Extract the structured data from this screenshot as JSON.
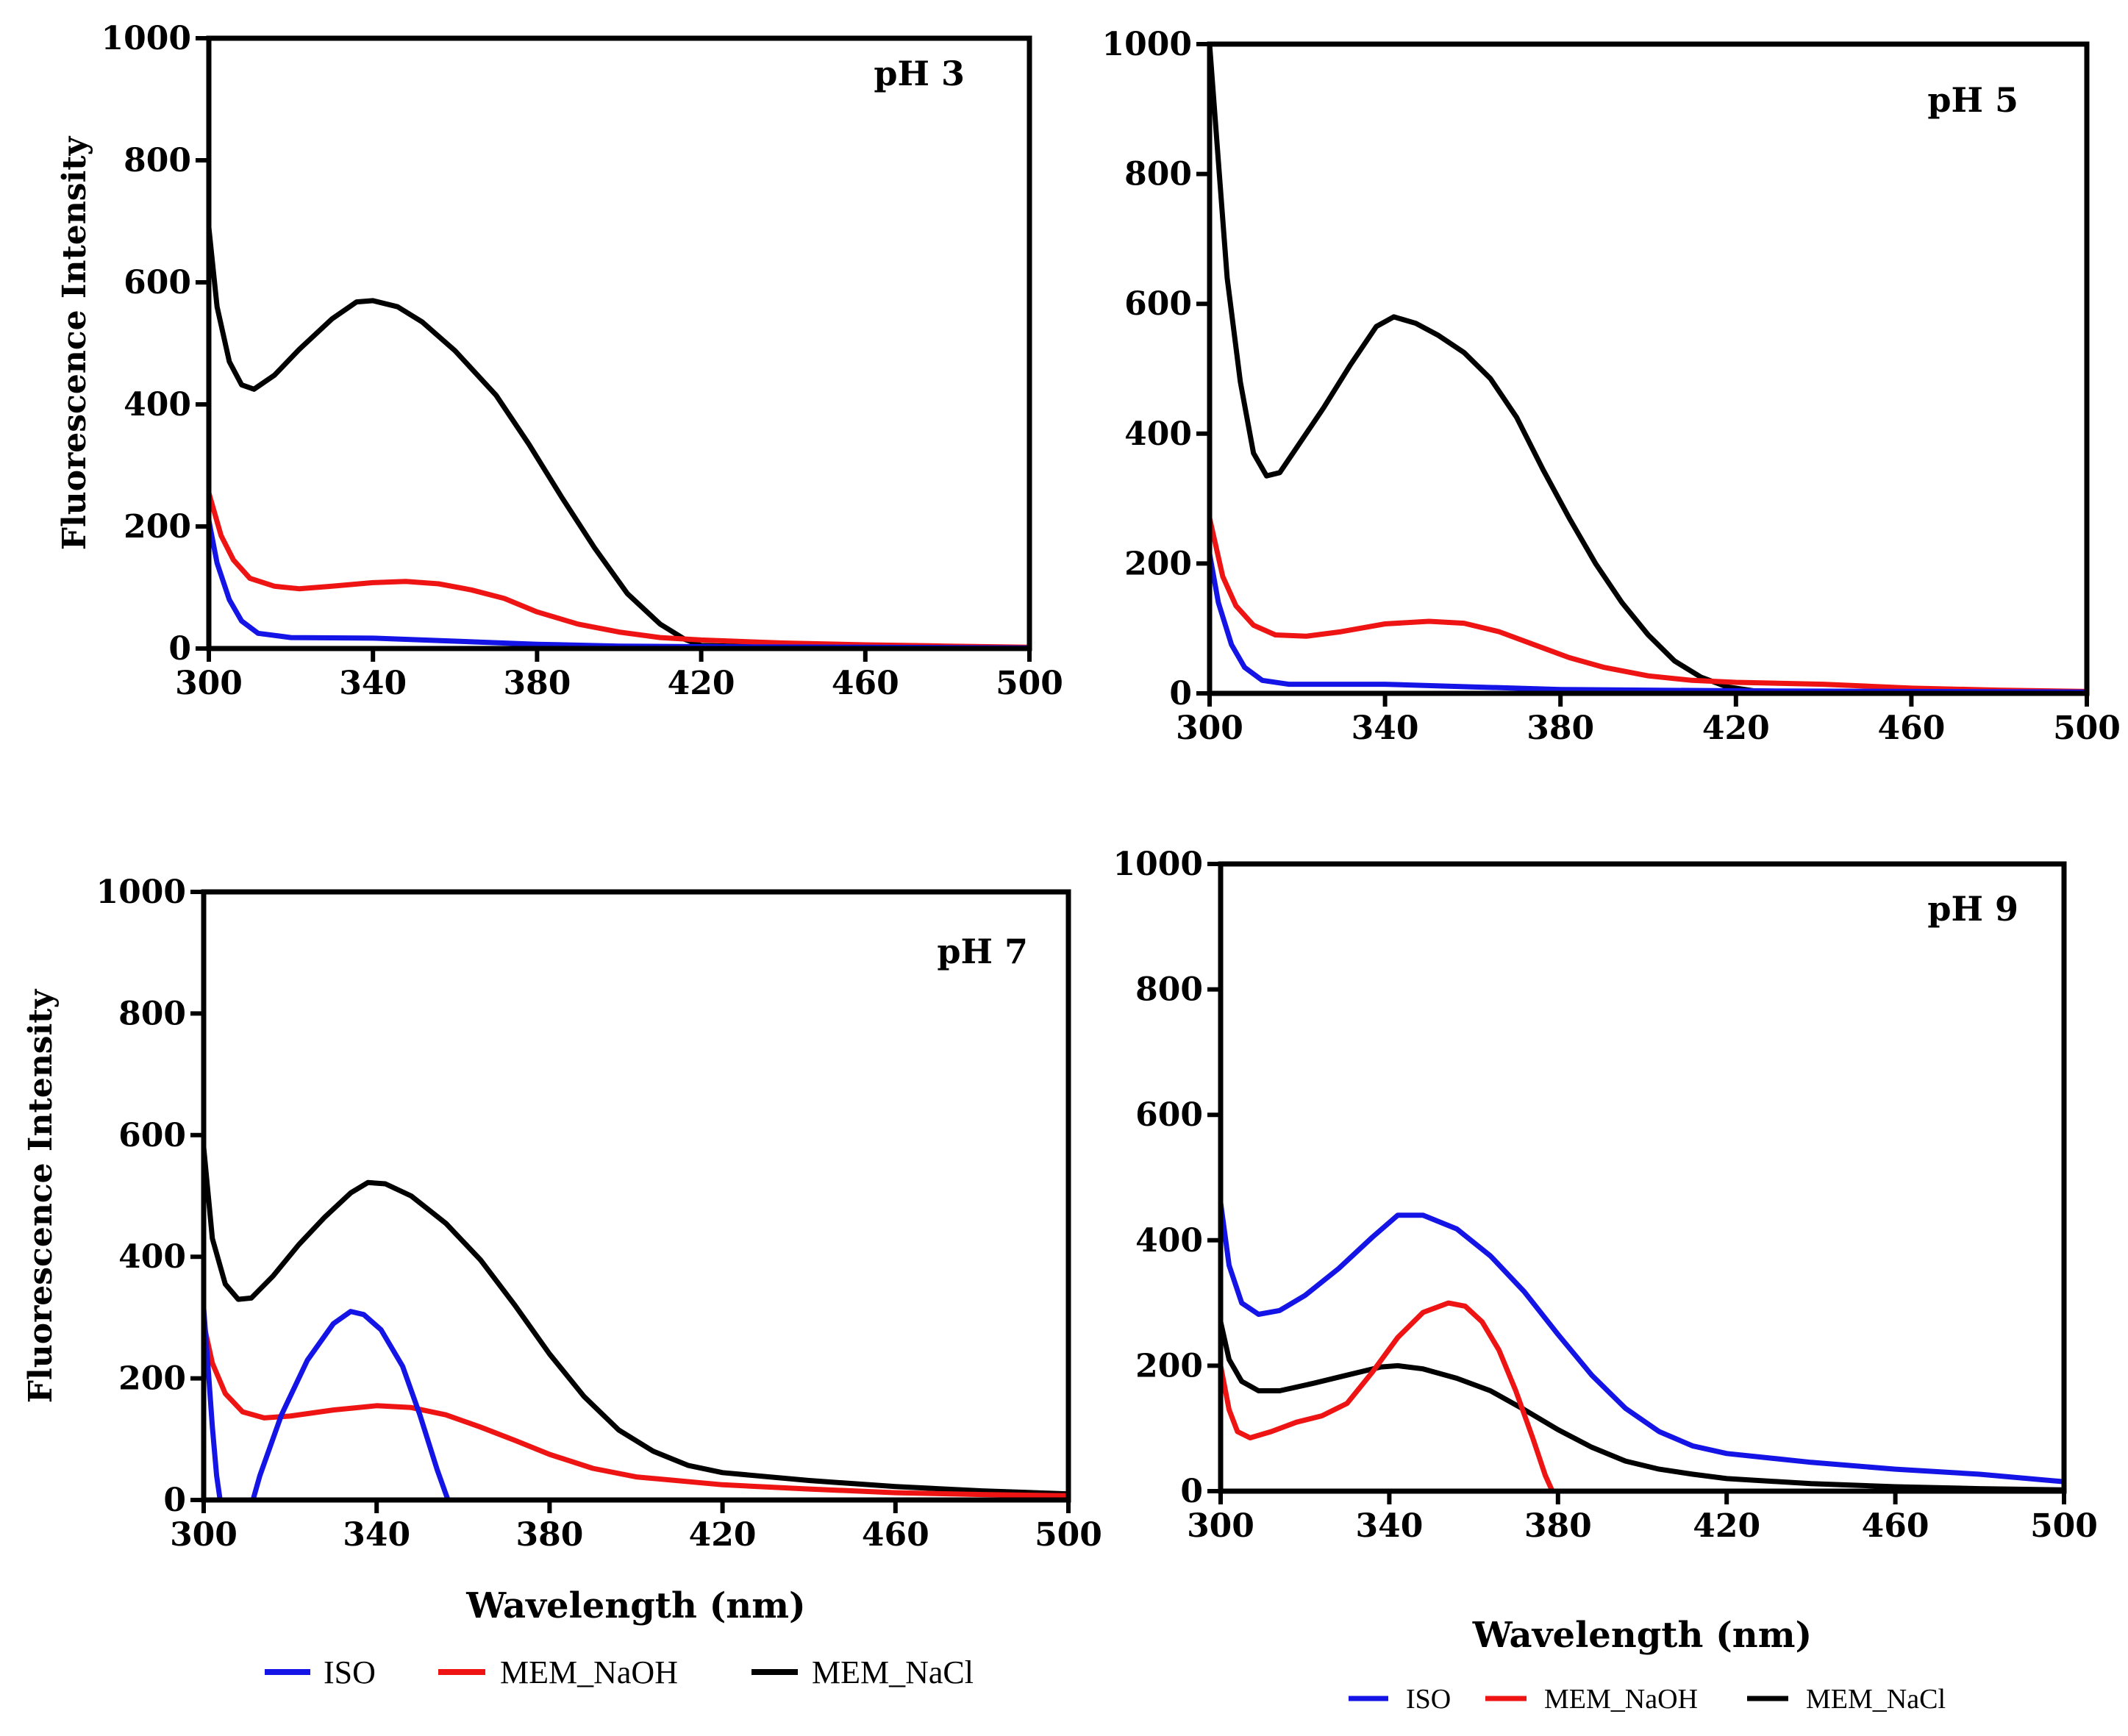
{
  "colors": {
    "ISO": "#1414e6",
    "MEM_NaOH": "#ee1414",
    "MEM_NaCl": "#000000"
  },
  "legend_a": [
    {
      "key": "ISO",
      "label": "ISO"
    },
    {
      "key": "MEM_NaOH",
      "label": "MEM_NaOH"
    },
    {
      "key": "MEM_NaCl",
      "label": "MEM_NaCl"
    }
  ],
  "legend_b": [
    {
      "key": "ISO",
      "label": "ISO"
    },
    {
      "key": "MEM_NaOH",
      "label": "MEM_NaOH"
    },
    {
      "key": "MEM_NaCl",
      "label": "MEM_NaCl"
    }
  ],
  "chart_data": [
    {
      "type": "line",
      "title": "pH 3",
      "xlabel": "",
      "ylabel": "Fluorescence Intensity",
      "xlim": [
        300,
        500
      ],
      "ylim": [
        0,
        1000
      ],
      "xticks": [
        300,
        340,
        380,
        420,
        460,
        500
      ],
      "yticks": [
        0,
        200,
        400,
        600,
        800,
        1000
      ],
      "series": [
        {
          "name": "ISO",
          "points": [
            [
              300,
              210
            ],
            [
              302,
              140
            ],
            [
              305,
              80
            ],
            [
              308,
              45
            ],
            [
              312,
              25
            ],
            [
              320,
              18
            ],
            [
              340,
              17
            ],
            [
              360,
              12
            ],
            [
              380,
              7
            ],
            [
              400,
              4
            ],
            [
              420,
              3
            ],
            [
              460,
              2
            ],
            [
              500,
              1
            ]
          ]
        },
        {
          "name": "MEM_NaOH",
          "points": [
            [
              300,
              255
            ],
            [
              303,
              185
            ],
            [
              306,
              145
            ],
            [
              310,
              115
            ],
            [
              316,
              102
            ],
            [
              322,
              98
            ],
            [
              330,
              102
            ],
            [
              340,
              108
            ],
            [
              348,
              110
            ],
            [
              356,
              106
            ],
            [
              364,
              96
            ],
            [
              372,
              82
            ],
            [
              380,
              60
            ],
            [
              390,
              40
            ],
            [
              400,
              27
            ],
            [
              410,
              18
            ],
            [
              420,
              14
            ],
            [
              440,
              9
            ],
            [
              460,
              6
            ],
            [
              480,
              4
            ],
            [
              500,
              2
            ]
          ]
        },
        {
          "name": "MEM_NaCl",
          "points": [
            [
              300,
              690
            ],
            [
              302,
              560
            ],
            [
              305,
              470
            ],
            [
              308,
              432
            ],
            [
              311,
              425
            ],
            [
              316,
              448
            ],
            [
              322,
              490
            ],
            [
              330,
              540
            ],
            [
              336,
              568
            ],
            [
              340,
              570
            ],
            [
              346,
              560
            ],
            [
              352,
              535
            ],
            [
              360,
              488
            ],
            [
              370,
              415
            ],
            [
              378,
              335
            ],
            [
              386,
              248
            ],
            [
              394,
              165
            ],
            [
              402,
              90
            ],
            [
              410,
              40
            ],
            [
              416,
              15
            ],
            [
              420,
              5
            ],
            [
              440,
              2
            ],
            [
              500,
              0
            ]
          ]
        }
      ]
    },
    {
      "type": "line",
      "title": "pH 5",
      "xlabel": "",
      "ylabel": "",
      "xlim": [
        300,
        500
      ],
      "ylim": [
        0,
        1000
      ],
      "xticks": [
        300,
        340,
        380,
        420,
        460,
        500
      ],
      "yticks": [
        0,
        200,
        400,
        600,
        800,
        1000
      ],
      "series": [
        {
          "name": "ISO",
          "points": [
            [
              300,
              215
            ],
            [
              302,
              140
            ],
            [
              305,
              75
            ],
            [
              308,
              40
            ],
            [
              312,
              20
            ],
            [
              318,
              14
            ],
            [
              340,
              14
            ],
            [
              360,
              10
            ],
            [
              380,
              6
            ],
            [
              400,
              5
            ],
            [
              420,
              4
            ],
            [
              460,
              3
            ],
            [
              500,
              2
            ]
          ]
        },
        {
          "name": "MEM_NaOH",
          "points": [
            [
              300,
              270
            ],
            [
              303,
              180
            ],
            [
              306,
              135
            ],
            [
              310,
              105
            ],
            [
              315,
              90
            ],
            [
              322,
              88
            ],
            [
              330,
              95
            ],
            [
              340,
              107
            ],
            [
              350,
              111
            ],
            [
              358,
              108
            ],
            [
              366,
              95
            ],
            [
              374,
              75
            ],
            [
              382,
              55
            ],
            [
              390,
              40
            ],
            [
              400,
              27
            ],
            [
              410,
              20
            ],
            [
              420,
              17
            ],
            [
              440,
              14
            ],
            [
              460,
              8
            ],
            [
              480,
              5
            ],
            [
              500,
              3
            ]
          ]
        },
        {
          "name": "MEM_NaCl",
          "points": [
            [
              300,
              1000
            ],
            [
              302,
              820
            ],
            [
              304,
              640
            ],
            [
              307,
              480
            ],
            [
              310,
              370
            ],
            [
              313,
              335
            ],
            [
              316,
              340
            ],
            [
              320,
              380
            ],
            [
              326,
              440
            ],
            [
              332,
              505
            ],
            [
              338,
              565
            ],
            [
              342,
              580
            ],
            [
              347,
              570
            ],
            [
              352,
              552
            ],
            [
              358,
              525
            ],
            [
              364,
              485
            ],
            [
              370,
              425
            ],
            [
              376,
              345
            ],
            [
              382,
              270
            ],
            [
              388,
              200
            ],
            [
              394,
              140
            ],
            [
              400,
              90
            ],
            [
              406,
              50
            ],
            [
              412,
              25
            ],
            [
              418,
              10
            ],
            [
              424,
              4
            ],
            [
              440,
              2
            ],
            [
              500,
              1
            ]
          ]
        }
      ]
    },
    {
      "type": "line",
      "title": "pH 7",
      "xlabel": "Wavelength (nm)",
      "ylabel": "Fluorescence Intensity",
      "xlim": [
        300,
        500
      ],
      "ylim": [
        0,
        1000
      ],
      "xticks": [
        300,
        340,
        380,
        420,
        460,
        500
      ],
      "yticks": [
        0,
        200,
        400,
        600,
        800,
        1000
      ],
      "series": [
        {
          "name": "ISO",
          "segments": [
            [
              [
                300,
                315
              ],
              [
                301,
                220
              ],
              [
                302,
                120
              ],
              [
                303,
                40
              ],
              [
                304,
                -10
              ]
            ],
            [
              [
                311,
                -10
              ],
              [
                313,
                40
              ],
              [
                318,
                140
              ],
              [
                324,
                230
              ],
              [
                330,
                290
              ],
              [
                334,
                310
              ],
              [
                337,
                305
              ],
              [
                341,
                280
              ],
              [
                346,
                220
              ],
              [
                350,
                140
              ],
              [
                354,
                50
              ],
              [
                357,
                -10
              ]
            ]
          ]
        },
        {
          "name": "MEM_NaOH",
          "points": [
            [
              300,
              290
            ],
            [
              302,
              225
            ],
            [
              305,
              175
            ],
            [
              309,
              145
            ],
            [
              314,
              135
            ],
            [
              320,
              138
            ],
            [
              330,
              148
            ],
            [
              340,
              155
            ],
            [
              348,
              152
            ],
            [
              356,
              140
            ],
            [
              364,
              120
            ],
            [
              372,
              98
            ],
            [
              380,
              75
            ],
            [
              390,
              52
            ],
            [
              400,
              38
            ],
            [
              420,
              25
            ],
            [
              440,
              18
            ],
            [
              460,
              12
            ],
            [
              480,
              9
            ],
            [
              500,
              7
            ]
          ]
        },
        {
          "name": "MEM_NaCl",
          "points": [
            [
              300,
              580
            ],
            [
              302,
              430
            ],
            [
              305,
              355
            ],
            [
              308,
              330
            ],
            [
              311,
              332
            ],
            [
              316,
              368
            ],
            [
              322,
              420
            ],
            [
              328,
              465
            ],
            [
              334,
              505
            ],
            [
              338,
              522
            ],
            [
              342,
              520
            ],
            [
              348,
              500
            ],
            [
              356,
              455
            ],
            [
              364,
              395
            ],
            [
              372,
              320
            ],
            [
              380,
              240
            ],
            [
              388,
              170
            ],
            [
              396,
              115
            ],
            [
              404,
              80
            ],
            [
              412,
              57
            ],
            [
              420,
              45
            ],
            [
              440,
              32
            ],
            [
              460,
              22
            ],
            [
              480,
              15
            ],
            [
              500,
              10
            ]
          ]
        }
      ]
    },
    {
      "type": "line",
      "title": "pH 9",
      "xlabel": "Wavelength (nm)",
      "ylabel": "",
      "xlim": [
        300,
        500
      ],
      "ylim": [
        0,
        1000
      ],
      "xticks": [
        300,
        340,
        380,
        420,
        460,
        500
      ],
      "yticks": [
        0,
        200,
        400,
        600,
        800,
        1000
      ],
      "series": [
        {
          "name": "ISO",
          "points": [
            [
              300,
              460
            ],
            [
              302,
              360
            ],
            [
              305,
              300
            ],
            [
              309,
              282
            ],
            [
              314,
              288
            ],
            [
              320,
              312
            ],
            [
              328,
              355
            ],
            [
              336,
              405
            ],
            [
              342,
              440
            ],
            [
              348,
              440
            ],
            [
              356,
              418
            ],
            [
              364,
              375
            ],
            [
              372,
              318
            ],
            [
              380,
              250
            ],
            [
              388,
              185
            ],
            [
              396,
              132
            ],
            [
              404,
              95
            ],
            [
              412,
              72
            ],
            [
              420,
              60
            ],
            [
              440,
              46
            ],
            [
              460,
              35
            ],
            [
              480,
              27
            ],
            [
              500,
              15
            ]
          ]
        },
        {
          "name": "MEM_NaOH",
          "points": [
            [
              300,
              200
            ],
            [
              302,
              130
            ],
            [
              304,
              95
            ],
            [
              307,
              85
            ],
            [
              312,
              95
            ],
            [
              318,
              110
            ],
            [
              324,
              120
            ],
            [
              330,
              140
            ],
            [
              336,
              190
            ],
            [
              342,
              245
            ],
            [
              348,
              285
            ],
            [
              354,
              300
            ],
            [
              358,
              295
            ],
            [
              362,
              270
            ],
            [
              366,
              225
            ],
            [
              370,
              160
            ],
            [
              374,
              85
            ],
            [
              377,
              25
            ],
            [
              379,
              -5
            ]
          ]
        },
        {
          "name": "MEM_NaCl",
          "points": [
            [
              300,
              270
            ],
            [
              302,
              210
            ],
            [
              305,
              175
            ],
            [
              309,
              160
            ],
            [
              314,
              160
            ],
            [
              322,
              172
            ],
            [
              330,
              185
            ],
            [
              338,
              198
            ],
            [
              342,
              200
            ],
            [
              348,
              195
            ],
            [
              356,
              180
            ],
            [
              364,
              160
            ],
            [
              372,
              130
            ],
            [
              380,
              98
            ],
            [
              388,
              70
            ],
            [
              396,
              48
            ],
            [
              404,
              35
            ],
            [
              412,
              27
            ],
            [
              420,
              20
            ],
            [
              440,
              12
            ],
            [
              460,
              7
            ],
            [
              480,
              4
            ],
            [
              500,
              2
            ]
          ]
        }
      ]
    }
  ]
}
